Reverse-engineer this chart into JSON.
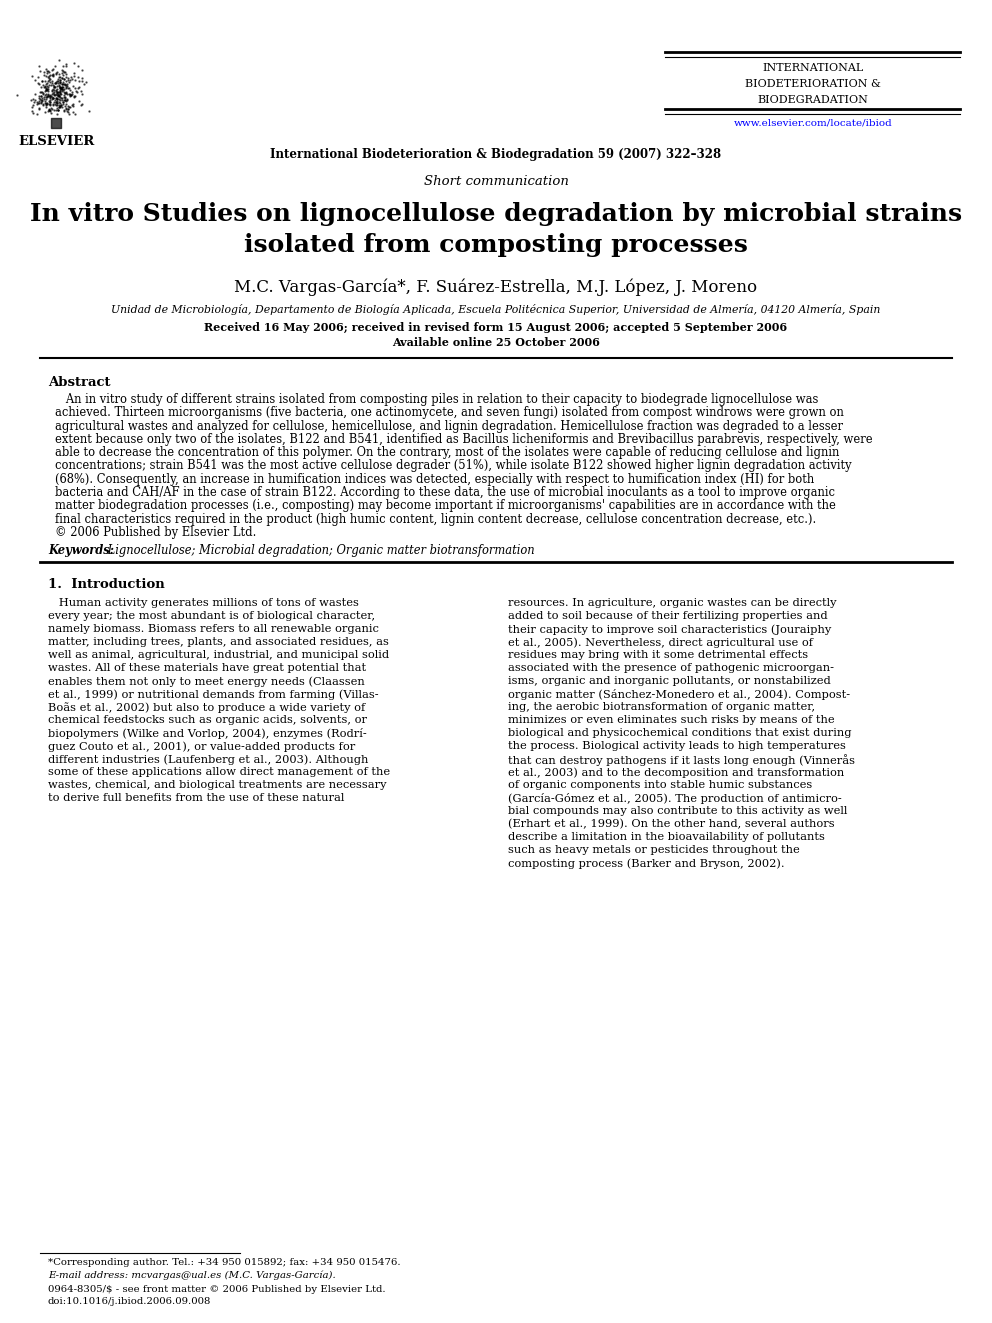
{
  "bg_color": "#ffffff",
  "top_margin_text": "International Biodeterioration & Biodegradation 59 (2007) 322–328",
  "journal_name_line1": "INTERNATIONAL",
  "journal_name_line2": "BIODETERIORATION &",
  "journal_name_line3": "BIODEGRADATION",
  "journal_url": "www.elsevier.com/locate/ibiod",
  "section_label": "Short communication",
  "article_title_line1": "In vitro Studies on lignocellulose degradation by microbial strains",
  "article_title_line2": "isolated from composting processes",
  "authors": "M.C. Vargas-García*, F. Suárez-Estrella, M.J. López, J. Moreno",
  "affiliation": "Unidad de Microbiología, Departamento de Biología Aplicada, Escuela Politécnica Superior, Universidad de Almería, 04120 Almería, Spain",
  "received": "Received 16 May 2006; received in revised form 15 August 2006; accepted 5 September 2006",
  "available": "Available online 25 October 2006",
  "abstract_label": "Abstract",
  "abstract_lines": [
    "   An in vitro study of different strains isolated from composting piles in relation to their capacity to biodegrade lignocellulose was",
    "achieved. Thirteen microorganisms (five bacteria, one actinomycete, and seven fungi) isolated from compost windrows were grown on",
    "agricultural wastes and analyzed for cellulose, hemicellulose, and lignin degradation. Hemicellulose fraction was degraded to a lesser",
    "extent because only two of the isolates, B122 and B541, identified as Bacillus licheniformis and Brevibacillus parabrevis, respectively, were",
    "able to decrease the concentration of this polymer. On the contrary, most of the isolates were capable of reducing cellulose and lignin",
    "concentrations; strain B541 was the most active cellulose degrader (51%), while isolate B122 showed higher lignin degradation activity",
    "(68%). Consequently, an increase in humification indices was detected, especially with respect to humification index (HI) for both",
    "bacteria and CAH/AF in the case of strain B122. According to these data, the use of microbial inoculants as a tool to improve organic",
    "matter biodegradation processes (i.e., composting) may become important if microorganisms' capabilities are in accordance with the",
    "final characteristics required in the product (high humic content, lignin content decrease, cellulose concentration decrease, etc.).",
    "© 2006 Published by Elsevier Ltd."
  ],
  "keywords_label": "Keywords:",
  "keywords_text": " Lignocellulose; Microbial degradation; Organic matter biotransformation",
  "section1_title": "1.  Introduction",
  "left_col_lines": [
    "   Human activity generates millions of tons of wastes",
    "every year; the most abundant is of biological character,",
    "namely biomass. Biomass refers to all renewable organic",
    "matter, including trees, plants, and associated residues, as",
    "well as animal, agricultural, industrial, and municipal solid",
    "wastes. All of these materials have great potential that",
    "enables them not only to meet energy needs (Claassen",
    "et al., 1999) or nutritional demands from farming (Villas-",
    "Boãs et al., 2002) but also to produce a wide variety of",
    "chemical feedstocks such as organic acids, solvents, or",
    "biopolymers (Wilke and Vorlop, 2004), enzymes (Rodrí-",
    "guez Couto et al., 2001), or value-added products for",
    "different industries (Laufenberg et al., 2003). Although",
    "some of these applications allow direct management of the",
    "wastes, chemical, and biological treatments are necessary",
    "to derive full benefits from the use of these natural"
  ],
  "right_col_lines": [
    "resources. In agriculture, organic wastes can be directly",
    "added to soil because of their fertilizing properties and",
    "their capacity to improve soil characteristics (Jouraiphy",
    "et al., 2005). Nevertheless, direct agricultural use of",
    "residues may bring with it some detrimental effects",
    "associated with the presence of pathogenic microorgan-",
    "isms, organic and inorganic pollutants, or nonstabilized",
    "organic matter (Sánchez-Monedero et al., 2004). Compost-",
    "ing, the aerobic biotransformation of organic matter,",
    "minimizes or even eliminates such risks by means of the",
    "biological and physicochemical conditions that exist during",
    "the process. Biological activity leads to high temperatures",
    "that can destroy pathogens if it lasts long enough (Vinnerås",
    "et al., 2003) and to the decomposition and transformation",
    "of organic components into stable humic substances",
    "(García-Gómez et al., 2005). The production of antimicro-",
    "bial compounds may also contribute to this activity as well",
    "(Erhart et al., 1999). On the other hand, several authors",
    "describe a limitation in the bioavailability of pollutants",
    "such as heavy metals or pesticides throughout the",
    "composting process (Barker and Bryson, 2002)."
  ],
  "footnote_line": "___",
  "footnote1": "*Corresponding author. Tel.: +34 950 015892; fax: +34 950 015476.",
  "footnote2": "E-mail address: mcvargas@ual.es (M.C. Vargas-García).",
  "footnote3": "0964-8305/$ - see front matter © 2006 Published by Elsevier Ltd.",
  "footnote4": "doi:10.1016/j.ibiod.2006.09.008"
}
